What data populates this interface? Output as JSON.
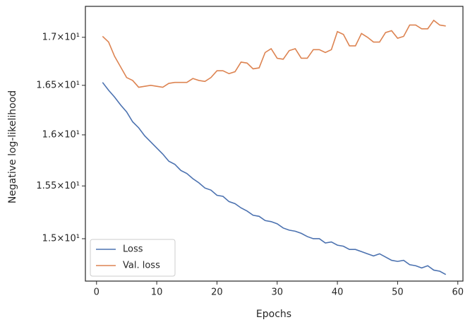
{
  "chart_data": {
    "type": "line",
    "xlabel": "Epochs",
    "ylabel": "Negative log-likelihood",
    "log_y": true,
    "grid": false,
    "legend": "lower left",
    "xlim": [
      -1.85,
      60.85
    ],
    "xticks": [
      0,
      10,
      20,
      30,
      40,
      50,
      60
    ],
    "ylim": [
      14.61,
      17.33
    ],
    "yticks": [
      {
        "value": 15,
        "label": "1.5×10¹"
      },
      {
        "value": 15.5,
        "label": "1.55×10¹"
      },
      {
        "value": 16,
        "label": "1.6×10¹"
      },
      {
        "value": 16.5,
        "label": "1.65×10¹"
      },
      {
        "value": 17,
        "label": "1.7×10¹"
      }
    ],
    "x": [
      1,
      2,
      3,
      4,
      5,
      6,
      7,
      8,
      9,
      10,
      11,
      12,
      13,
      14,
      15,
      16,
      17,
      18,
      19,
      20,
      21,
      22,
      23,
      24,
      25,
      26,
      27,
      28,
      29,
      30,
      31,
      32,
      33,
      34,
      35,
      36,
      37,
      38,
      39,
      40,
      41,
      42,
      43,
      44,
      45,
      46,
      47,
      48,
      49,
      50,
      51,
      52,
      53,
      54,
      55,
      56,
      57,
      58
    ],
    "series": [
      {
        "name": "Loss",
        "color": "#4c72b0",
        "values": [
          16.53,
          16.45,
          16.38,
          16.3,
          16.23,
          16.13,
          16.07,
          15.99,
          15.93,
          15.87,
          15.81,
          15.74,
          15.71,
          15.65,
          15.62,
          15.57,
          15.53,
          15.48,
          15.46,
          15.41,
          15.4,
          15.35,
          15.33,
          15.29,
          15.26,
          15.22,
          15.21,
          15.17,
          15.16,
          15.14,
          15.1,
          15.08,
          15.07,
          15.05,
          15.02,
          15.0,
          15.0,
          14.96,
          14.97,
          14.94,
          14.93,
          14.9,
          14.9,
          14.88,
          14.86,
          14.84,
          14.86,
          14.83,
          14.8,
          14.79,
          14.8,
          14.76,
          14.75,
          14.73,
          14.75,
          14.71,
          14.7,
          14.67
        ]
      },
      {
        "name": "Val. loss",
        "color": "#dd8452",
        "values": [
          17.01,
          16.95,
          16.8,
          16.69,
          16.58,
          16.55,
          16.48,
          16.49,
          16.5,
          16.49,
          16.48,
          16.52,
          16.53,
          16.53,
          16.53,
          16.57,
          16.55,
          16.54,
          16.58,
          16.65,
          16.65,
          16.62,
          16.64,
          16.74,
          16.73,
          16.67,
          16.68,
          16.84,
          16.88,
          16.78,
          16.77,
          16.86,
          16.88,
          16.78,
          16.78,
          16.87,
          16.87,
          16.84,
          16.87,
          17.06,
          17.03,
          16.91,
          16.91,
          17.04,
          17.0,
          16.95,
          16.95,
          17.05,
          17.07,
          16.99,
          17.01,
          17.13,
          17.13,
          17.09,
          17.09,
          17.18,
          17.13,
          17.12
        ]
      }
    ]
  }
}
